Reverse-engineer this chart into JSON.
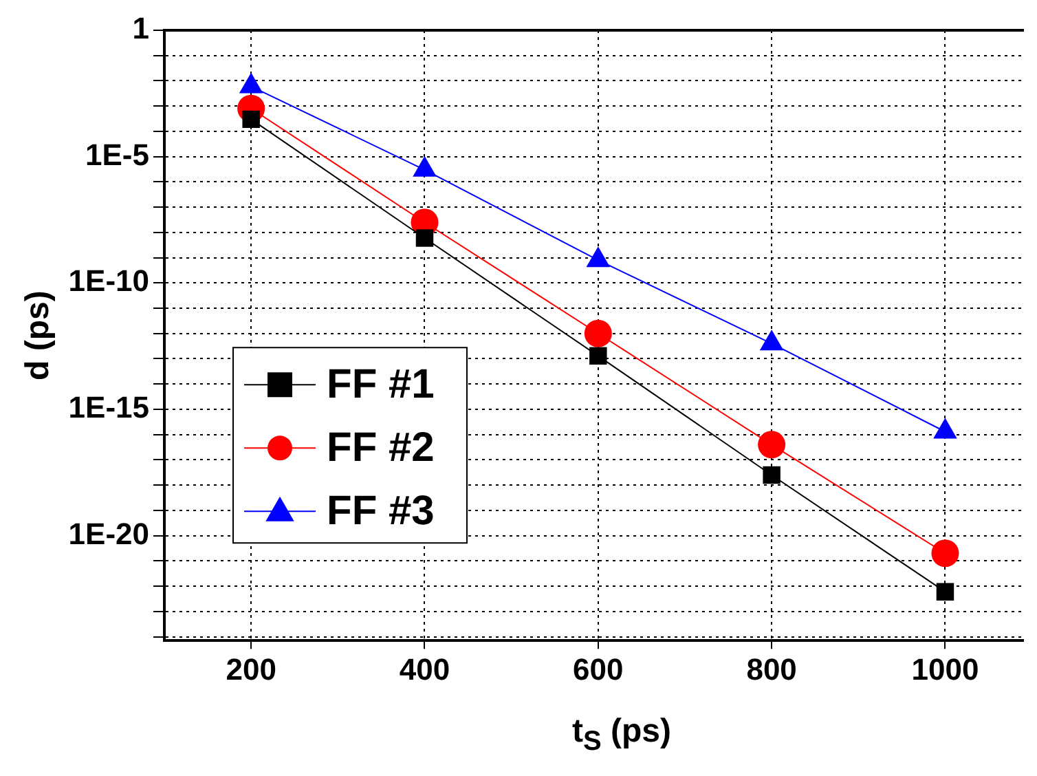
{
  "chart_data": {
    "type": "line",
    "xlabel": "t$_{S}$ (ps)",
    "ylabel": "d (ps)",
    "x": [
      200,
      400,
      600,
      800,
      1000
    ],
    "series": [
      {
        "name": "FF #1",
        "color": "#000000",
        "marker": "square",
        "values": [
          0.0003,
          6e-09,
          1.3e-13,
          2.5e-18,
          6e-23
        ]
      },
      {
        "name": "FF #2",
        "color": "#ff0000",
        "marker": "circle",
        "values": [
          0.0008,
          2.5e-08,
          1e-12,
          4e-17,
          2e-21
        ]
      },
      {
        "name": "FF #3",
        "color": "#0000ff",
        "marker": "triangle",
        "values": [
          0.006,
          3e-06,
          8e-10,
          4e-13,
          1.3e-16
        ]
      }
    ],
    "log": "y",
    "xlim": [
      100,
      1090
    ],
    "xticks": [
      200,
      400,
      600,
      800,
      1000
    ],
    "ylim": [
      7e-25,
      1
    ],
    "yticks": [
      1,
      {
        "value": 0.1,
        "label": null
      },
      {
        "value": 0.01,
        "label": null
      },
      {
        "value": 0.001,
        "label": null
      },
      {
        "value": 0.0001,
        "label": null
      },
      {
        "value": 1e-05,
        "label": "1E-5"
      },
      {
        "value": 1e-06,
        "label": null
      },
      {
        "value": 1e-07,
        "label": null
      },
      {
        "value": 1e-08,
        "label": null
      },
      {
        "value": 1e-09,
        "label": null
      },
      {
        "value": 1e-10,
        "label": "1E-10"
      },
      {
        "value": 1e-11,
        "label": null
      },
      {
        "value": 1e-12,
        "label": null
      },
      {
        "value": 1e-13,
        "label": null
      },
      {
        "value": 1e-14,
        "label": null
      },
      {
        "value": 1e-15,
        "label": "1E-15"
      },
      {
        "value": 1e-16,
        "label": null
      },
      {
        "value": 1e-17,
        "label": null
      },
      {
        "value": 1e-18,
        "label": null
      },
      {
        "value": 1e-19,
        "label": null
      },
      {
        "value": 1e-20,
        "label": "1E-20"
      },
      {
        "value": 1e-21,
        "label": null
      },
      {
        "value": 1e-22,
        "label": null
      },
      {
        "value": 1e-23,
        "label": null
      },
      {
        "value": 1e-24,
        "label": null
      }
    ],
    "grid": true,
    "legend": "left",
    "line_style": "solid"
  }
}
